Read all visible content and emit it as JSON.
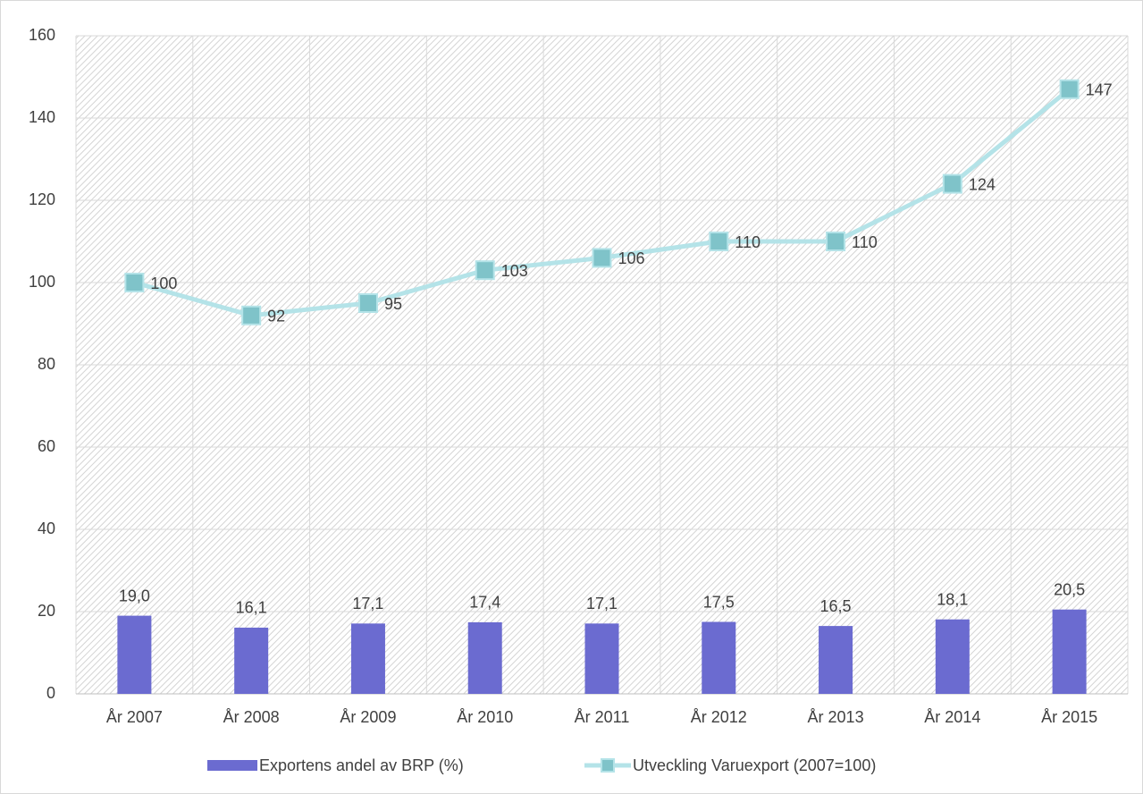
{
  "chart_data": {
    "type": "bar_line",
    "categories": [
      "År 2007",
      "År 2008",
      "År 2009",
      "År 2010",
      "År 2011",
      "År 2012",
      "År 2013",
      "År 2014",
      "År 2015"
    ],
    "series": [
      {
        "name": "Exportens andel av BRP (%)",
        "type": "bar",
        "color": "#6b6bd0",
        "values": [
          19.0,
          16.1,
          17.1,
          17.4,
          17.1,
          17.5,
          16.5,
          18.1,
          20.5
        ],
        "value_labels": [
          "19,0",
          "16,1",
          "17,1",
          "17,4",
          "17,1",
          "17,5",
          "16,5",
          "18,1",
          "20,5"
        ]
      },
      {
        "name": "Utveckling Varuexport (2007=100)",
        "type": "line",
        "color": "#b4e3e8",
        "marker_color": "#7fc3c9",
        "values": [
          100,
          92,
          95,
          103,
          106,
          110,
          110,
          124,
          147
        ]
      }
    ],
    "ylim": [
      0,
      160
    ],
    "yticks": [
      0,
      20,
      40,
      60,
      80,
      100,
      120,
      140,
      160
    ],
    "grid": true,
    "legend": "bottom"
  }
}
